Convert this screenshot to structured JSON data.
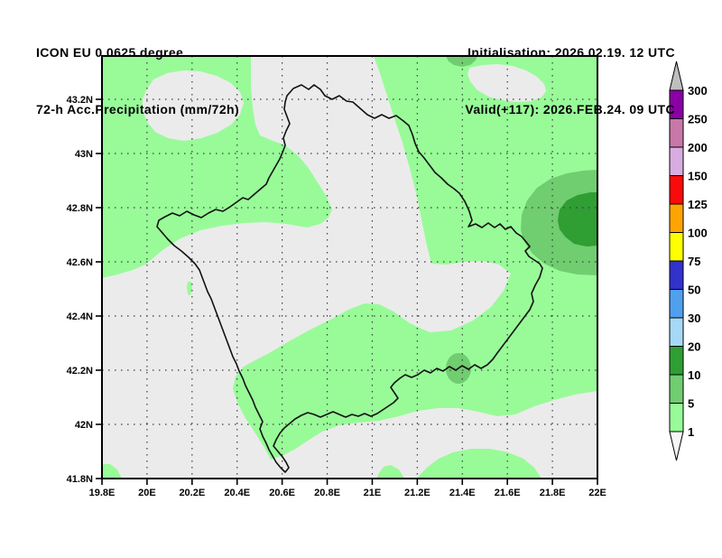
{
  "header": {
    "model": "ICON EU 0.0625 degree",
    "product": "72-h Acc.Precipitation (mm/72h)",
    "initialisation": "Initialisation: 2026.02.19. 12 UTC",
    "valid": "Valid(+117): 2026.FEB.24. 09 UTC"
  },
  "map": {
    "x_axis_ticks": [
      "19.8E",
      "20E",
      "20.2E",
      "20.4E",
      "20.6E",
      "20.8E",
      "21E",
      "21.2E",
      "21.4E",
      "21.6E",
      "21.8E",
      "22E"
    ],
    "y_axis_ticks": [
      "43.2N",
      "43N",
      "42.8N",
      "42.6N",
      "42.4N",
      "42.2N",
      "42N",
      "41.8N"
    ],
    "lon_range": [
      19.8,
      22.0
    ],
    "lat_range": [
      41.8,
      43.36
    ],
    "grid": "dotted 0.2 degree"
  },
  "map_colors": {
    "dry": "#EBEBEB",
    "rain_1_5": "#98FB98",
    "rain_5_10": "#70CD70",
    "rain_10_20": "#2F9E33",
    "border": "#111111"
  },
  "colorbar": {
    "unit": "mm/72h",
    "boundaries": [
      300,
      250,
      200,
      150,
      125,
      100,
      75,
      50,
      30,
      20,
      10,
      5,
      1
    ],
    "segment_colors": [
      "#8B00A4",
      "#C878A8",
      "#D8ACE0",
      "#FA0A0A",
      "#FFA400",
      "#FFFF00",
      "#3232CD",
      "#4FA0ED",
      "#A6D9F7",
      "#2F9E33",
      "#70CD70",
      "#98FB98"
    ],
    "over_color": "#BEBEBE",
    "under_color": "#F6F6F6"
  }
}
